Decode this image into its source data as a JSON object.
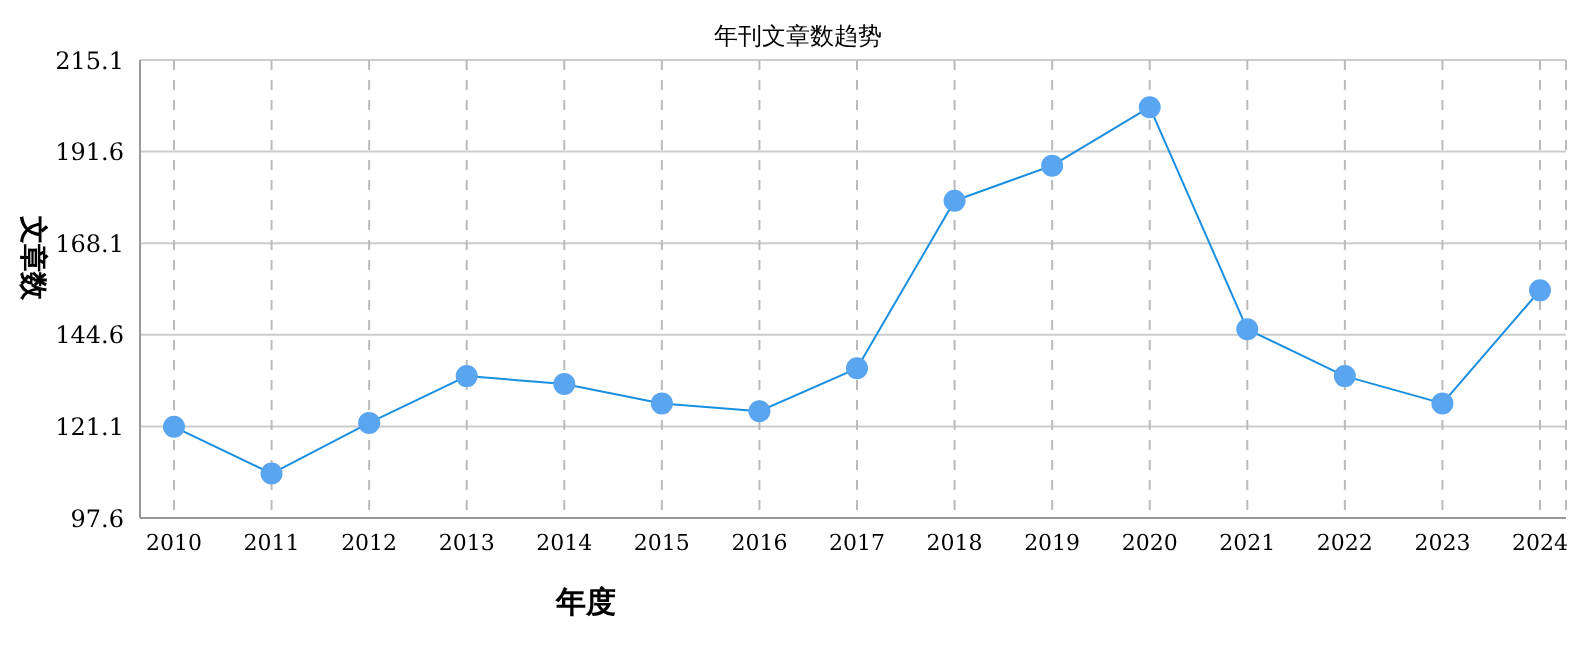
{
  "chart_data": {
    "type": "line",
    "title": "年刊文章数趋势",
    "xlabel": "年度",
    "ylabel": "文章数",
    "categories": [
      "2010",
      "2011",
      "2012",
      "2013",
      "2014",
      "2015",
      "2016",
      "2017",
      "2018",
      "2019",
      "2020",
      "2021",
      "2022",
      "2023",
      "2024"
    ],
    "series": [
      {
        "color": "#1a8fe0",
        "values": [
          121,
          109,
          122,
          134,
          132,
          127,
          125,
          136,
          179,
          188,
          203,
          146,
          134,
          127,
          156
        ]
      }
    ],
    "ylim": [
      97.6,
      215.1
    ],
    "yticks": [
      97.6,
      121.1,
      144.6,
      168.1,
      191.6,
      215.1
    ],
    "grid": true,
    "marker": "circle",
    "line_style": "solid"
  }
}
